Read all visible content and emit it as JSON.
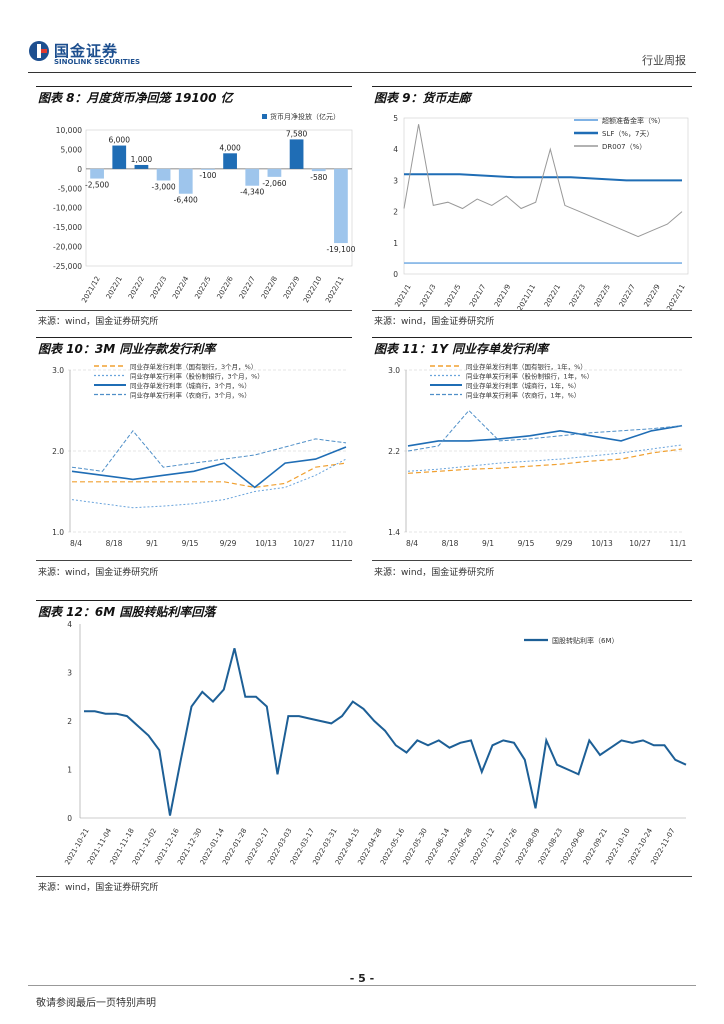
{
  "header": {
    "company_cn": "国金证券",
    "company_en": "SINOLINK SECURITIES",
    "report_type": "行业周报"
  },
  "footer": {
    "page_number": "- 5 -",
    "disclaimer": "敬请参阅最后一页特别声明"
  },
  "colors": {
    "dark_blue": "#1f6db5",
    "light_blue": "#9ec5ec",
    "orange": "#f0a030",
    "gray": "#999999",
    "steel": "#1d5f96"
  },
  "chart_data": [
    {
      "id": "fig8",
      "type": "bar",
      "title": "图表 8：月度货币净回笼 19100 亿",
      "source": "来源：wind，国金证券研究所",
      "legend": "货币月净投放（亿元）",
      "categories": [
        "2021/12",
        "2022/1",
        "2022/2",
        "2022/3",
        "2022/4",
        "2022/5",
        "2022/6",
        "2022/7",
        "2022/8",
        "2022/9",
        "2022/10",
        "2022/11"
      ],
      "values": [
        -2500,
        6000,
        1000,
        -3000,
        -6400,
        -100,
        4000,
        -4340,
        -2060,
        7580,
        -580,
        -19100
      ],
      "labels": [
        "-2,500",
        "6,000",
        "1,000",
        "-3,000",
        "-6,400",
        "-100",
        "4,000",
        "-4,340",
        "-2,060",
        "7,580",
        "-580",
        "-19,100"
      ],
      "ylim": [
        -25000,
        10000
      ],
      "yticks": [
        "10,000",
        "5,000",
        "0",
        "-5,000",
        "-10,000",
        "-15,000",
        "-20,000",
        "-25,000"
      ]
    },
    {
      "id": "fig9",
      "type": "line",
      "title": "图表 9：货币走廊",
      "source": "来源：wind，国金证券研究所",
      "ylim": [
        0,
        5
      ],
      "yticks": [
        "5",
        "4",
        "3",
        "2",
        "1",
        "0"
      ],
      "xticks": [
        "2021/1",
        "2021/3",
        "2021/5",
        "2021/7",
        "2021/9",
        "2021/11",
        "2022/1",
        "2022/3",
        "2022/5",
        "2022/7",
        "2022/9",
        "2022/11"
      ],
      "series": [
        {
          "name": "超额准备金率（%）",
          "values": [
            0.35,
            0.35
          ]
        },
        {
          "name": "SLF（%，7天）",
          "values": [
            3.2,
            3.2,
            3.1,
            3.1,
            3.0,
            3.0
          ]
        },
        {
          "name": "DR007（%）",
          "values": [
            2.1,
            4.8,
            2.2,
            2.3,
            2.1,
            2.4,
            2.2,
            2.5,
            2.1,
            2.3,
            4.0,
            2.2,
            2.0,
            1.8,
            1.6,
            1.4,
            1.2,
            1.4,
            1.6,
            2.0
          ]
        }
      ]
    },
    {
      "id": "fig10",
      "type": "line",
      "title": "图表 10：3M 同业存款发行利率",
      "source": "来源：wind，国金证券研究所",
      "ylim": [
        1.0,
        3.0
      ],
      "yticks": [
        "3.0",
        "2.0",
        "1.0"
      ],
      "xticks": [
        "8/4",
        "8/18",
        "9/1",
        "9/15",
        "9/29",
        "10/13",
        "10/27",
        "11/10"
      ],
      "series": [
        {
          "name": "同业存单发行利率（国有银行，3个月，%）",
          "values": [
            1.62,
            1.62,
            1.62,
            1.62,
            1.62,
            1.62,
            1.55,
            1.6,
            1.8,
            1.85
          ]
        },
        {
          "name": "同业存单发行利率（股份制银行，3个月，%）",
          "values": [
            1.4,
            1.35,
            1.3,
            1.32,
            1.35,
            1.4,
            1.5,
            1.55,
            1.7,
            1.9
          ]
        },
        {
          "name": "同业存单发行利率（城商行，3个月，%）",
          "values": [
            1.75,
            1.7,
            1.65,
            1.7,
            1.75,
            1.85,
            1.55,
            1.85,
            1.9,
            2.05
          ]
        },
        {
          "name": "同业存单发行利率（农商行，3个月，%）",
          "values": [
            1.8,
            1.75,
            2.25,
            1.8,
            1.85,
            1.9,
            1.95,
            2.05,
            2.15,
            2.1
          ]
        }
      ]
    },
    {
      "id": "fig11",
      "type": "line",
      "title": "图表 11：1Y 同业存单发行利率",
      "source": "来源：wind，国金证券研究所",
      "ylim": [
        1.4,
        3.0
      ],
      "yticks": [
        "3.0",
        "2.2",
        "1.4"
      ],
      "xticks": [
        "8/4",
        "8/18",
        "9/1",
        "9/15",
        "9/29",
        "10/13",
        "10/27",
        "11/1"
      ],
      "series": [
        {
          "name": "同业存单发行利率（国有银行，1年，%）",
          "values": [
            1.98,
            2.0,
            2.02,
            2.03,
            2.05,
            2.07,
            2.1,
            2.12,
            2.18,
            2.22
          ]
        },
        {
          "name": "同业存单发行利率（股份制银行，1年，%）",
          "values": [
            2.0,
            2.02,
            2.05,
            2.08,
            2.1,
            2.12,
            2.15,
            2.18,
            2.22,
            2.26
          ]
        },
        {
          "name": "同业存单发行利率（城商行，1年，%）",
          "values": [
            2.25,
            2.3,
            2.3,
            2.32,
            2.35,
            2.4,
            2.35,
            2.3,
            2.4,
            2.45
          ]
        },
        {
          "name": "同业存单发行利率（农商行，1年，%）",
          "values": [
            2.2,
            2.25,
            2.6,
            2.3,
            2.32,
            2.35,
            2.38,
            2.4,
            2.42,
            2.45
          ]
        }
      ]
    },
    {
      "id": "fig12",
      "type": "line",
      "title": "图表 12：6M 国股转贴利率回落",
      "source": "来源：wind，国金证券研究所",
      "legend": "国股转贴利率（6M）",
      "ylim": [
        0,
        4
      ],
      "yticks": [
        "4",
        "3",
        "2",
        "1",
        "0"
      ],
      "xticks": [
        "2021-10-21",
        "2021-11-04",
        "2021-11-18",
        "2021-12-02",
        "2021-12-16",
        "2021-12-30",
        "2022-01-14",
        "2022-01-28",
        "2022-02-17",
        "2022-03-03",
        "2022-03-17",
        "2022-03-31",
        "2022-04-15",
        "2022-04-28",
        "2022-05-16",
        "2022-05-30",
        "2022-06-14",
        "2022-06-28",
        "2022-07-12",
        "2022-07-26",
        "2022-08-09",
        "2022-08-23",
        "2022-09-06",
        "2022-09-21",
        "2022-10-10",
        "2022-10-24",
        "2022-11-07"
      ],
      "series": [
        {
          "name": "国股转贴利率（6M）",
          "values": [
            2.2,
            2.2,
            2.15,
            2.15,
            2.1,
            1.9,
            1.7,
            1.4,
            0.05,
            1.2,
            2.3,
            2.6,
            2.4,
            2.65,
            3.5,
            2.5,
            2.5,
            2.3,
            0.9,
            2.1,
            2.1,
            2.05,
            2.0,
            1.95,
            2.1,
            2.4,
            2.25,
            2.0,
            1.8,
            1.5,
            1.35,
            1.6,
            1.5,
            1.6,
            1.45,
            1.55,
            1.6,
            0.95,
            1.5,
            1.6,
            1.55,
            1.2,
            0.2,
            1.6,
            1.1,
            1.0,
            0.9,
            1.6,
            1.3,
            1.45,
            1.6,
            1.55,
            1.6,
            1.5,
            1.5,
            1.2,
            1.1
          ]
        }
      ]
    }
  ]
}
